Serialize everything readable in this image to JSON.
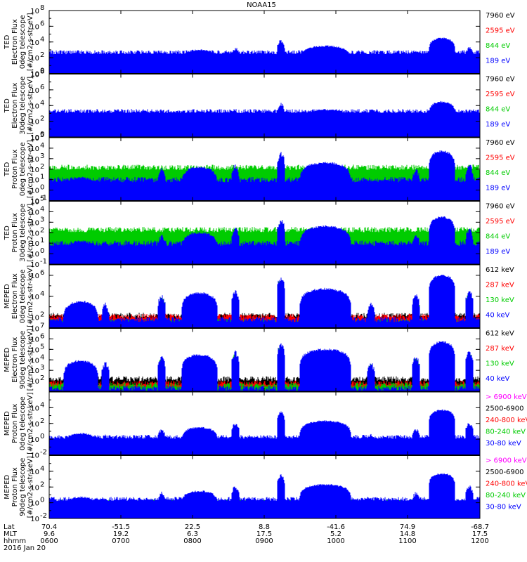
{
  "title": "NOAA15",
  "chart_data": [
    {
      "type": "line",
      "ylabel": [
        "TED",
        "Electron Flux",
        "0deg telescope",
        "[#/cm2-s-str-eV]"
      ],
      "yscale": "log",
      "ylim": [
        1,
        100000000
      ],
      "yticks": [
        {
          "label": "10",
          "sup": "0",
          "v": 1
        },
        {
          "label": "10",
          "sup": "2",
          "v": 100
        },
        {
          "label": "10",
          "sup": "4",
          "v": 10000
        },
        {
          "label": "10",
          "sup": "6",
          "v": 1000000
        },
        {
          "label": "10",
          "sup": "8",
          "v": 100000000
        }
      ],
      "legend": [
        {
          "label": "7960 eV",
          "color": "#000000"
        },
        {
          "label": "2595 eV",
          "color": "#ff0000"
        },
        {
          "label": "844 eV",
          "color": "#00cc00"
        },
        {
          "label": "189 eV",
          "color": "#0000ff"
        }
      ],
      "series": [
        {
          "color": "#000000",
          "peaks": [
            10,
            60,
            200,
            1000
          ],
          "floor": 2
        },
        {
          "color": "#ff0000",
          "peaks": [
            40,
            150,
            400,
            3000
          ],
          "floor": 3
        },
        {
          "color": "#00cc00",
          "peaks": [
            100,
            400,
            1000,
            10000
          ],
          "floor": 60
        },
        {
          "color": "#0000ff",
          "peaks": [
            200,
            1000,
            3000,
            30000
          ],
          "floor": 500
        }
      ]
    },
    {
      "type": "line",
      "ylabel": [
        "TED",
        "Electron Flux",
        "30deg telescope",
        "[#/cm2-s-str-eV]"
      ],
      "yscale": "log",
      "ylim": [
        1,
        100000000
      ],
      "yticks": [
        {
          "label": "10",
          "sup": "0",
          "v": 1
        },
        {
          "label": "10",
          "sup": "2",
          "v": 100
        },
        {
          "label": "10",
          "sup": "4",
          "v": 10000
        },
        {
          "label": "10",
          "sup": "6",
          "v": 1000000
        },
        {
          "label": "10",
          "sup": "8",
          "v": 100000000
        }
      ],
      "legend": [
        {
          "label": "7960 eV",
          "color": "#000000"
        },
        {
          "label": "2595 eV",
          "color": "#ff0000"
        },
        {
          "label": "844 eV",
          "color": "#00cc00"
        },
        {
          "label": "189 eV",
          "color": "#0000ff"
        }
      ],
      "series": [
        {
          "color": "#000000",
          "peaks": [
            10,
            60,
            200,
            1000
          ],
          "floor": 2
        },
        {
          "color": "#ff0000",
          "peaks": [
            40,
            150,
            400,
            3000
          ],
          "floor": 3
        },
        {
          "color": "#00cc00",
          "peaks": [
            100,
            400,
            1000,
            10000
          ],
          "floor": 15
        },
        {
          "color": "#0000ff",
          "peaks": [
            300,
            1500,
            3000,
            30000
          ],
          "floor": 2000
        }
      ]
    },
    {
      "type": "line",
      "ylabel": [
        "TED",
        "Proton Flux",
        "0deg telescope",
        "[#/cm2-s-str-eV]"
      ],
      "yscale": "log",
      "ylim": [
        0.1,
        100000
      ],
      "yticks": [
        {
          "label": "10",
          "sup": "-1",
          "v": 0.1
        },
        {
          "label": "10",
          "sup": "0",
          "v": 1
        },
        {
          "label": "10",
          "sup": "1",
          "v": 10
        },
        {
          "label": "10",
          "sup": "2",
          "v": 100
        },
        {
          "label": "10",
          "sup": "3",
          "v": 1000
        },
        {
          "label": "10",
          "sup": "4",
          "v": 10000
        },
        {
          "label": "10",
          "sup": "5",
          "v": 100000
        }
      ],
      "legend": [
        {
          "label": "7960 eV",
          "color": "#000000"
        },
        {
          "label": "2595 eV",
          "color": "#ff0000"
        },
        {
          "label": "844 eV",
          "color": "#00cc00"
        },
        {
          "label": "189 eV",
          "color": "#0000ff"
        }
      ],
      "series": [
        {
          "color": "#000000",
          "peaks": [
            5,
            40,
            100,
            500
          ],
          "floor": 0.5
        },
        {
          "color": "#ff0000",
          "peaks": [
            8,
            60,
            150,
            1000
          ],
          "floor": 1
        },
        {
          "color": "#00cc00",
          "peaks": [
            10,
            100,
            300,
            2000
          ],
          "floor": 150
        },
        {
          "color": "#0000ff",
          "peaks": [
            15,
            150,
            400,
            5000
          ],
          "floor": 10
        }
      ]
    },
    {
      "type": "line",
      "ylabel": [
        "TED",
        "Proton Flux",
        "30deg telescope",
        "[#/cm2-s-str-eV]"
      ],
      "yscale": "log",
      "ylim": [
        0.1,
        100000
      ],
      "yticks": [
        {
          "label": "10",
          "sup": "-1",
          "v": 0.1
        },
        {
          "label": "10",
          "sup": "0",
          "v": 1
        },
        {
          "label": "10",
          "sup": "1",
          "v": 10
        },
        {
          "label": "10",
          "sup": "2",
          "v": 100
        },
        {
          "label": "10",
          "sup": "3",
          "v": 1000
        },
        {
          "label": "10",
          "sup": "4",
          "v": 10000
        },
        {
          "label": "10",
          "sup": "5",
          "v": 100000
        }
      ],
      "legend": [
        {
          "label": "7960 eV",
          "color": "#000000"
        },
        {
          "label": "2595 eV",
          "color": "#ff0000"
        },
        {
          "label": "844 eV",
          "color": "#00cc00"
        },
        {
          "label": "189 eV",
          "color": "#0000ff"
        }
      ],
      "series": [
        {
          "color": "#000000",
          "peaks": [
            5,
            30,
            80,
            300
          ],
          "floor": 0.5
        },
        {
          "color": "#ff0000",
          "peaks": [
            8,
            50,
            120,
            800
          ],
          "floor": 1
        },
        {
          "color": "#00cc00",
          "peaks": [
            10,
            80,
            300,
            1500
          ],
          "floor": 200
        },
        {
          "color": "#0000ff",
          "peaks": [
            15,
            100,
            400,
            3000
          ],
          "floor": 10
        }
      ]
    },
    {
      "type": "line",
      "ylabel": [
        "MEPED",
        "Electron Flux",
        "0deg telescope",
        "[#/cm2-s-str-keV]"
      ],
      "yscale": "log",
      "ylim": [
        10,
        10000000
      ],
      "yticks": [
        {
          "label": "10",
          "sup": "2",
          "v": 100
        },
        {
          "label": "10",
          "sup": "4",
          "v": 10000
        },
        {
          "label": "10",
          "sup": "6",
          "v": 1000000
        }
      ],
      "legend": [
        {
          "label": "612 keV",
          "color": "#000000"
        },
        {
          "label": "287 keV",
          "color": "#ff0000"
        },
        {
          "label": "130 keV",
          "color": "#00cc00"
        },
        {
          "label": "40 keV",
          "color": "#0000ff"
        }
      ],
      "series": [
        {
          "color": "#000000",
          "peaks": [
            100,
            500,
            1000,
            10000
          ],
          "floor": 150
        },
        {
          "color": "#ff0000",
          "peaks": [
            1000,
            5000,
            20000,
            300000
          ],
          "floor": 120
        },
        {
          "color": "#00cc00",
          "peaks": [
            2000,
            10000,
            30000,
            600000
          ],
          "floor": 40
        },
        {
          "color": "#0000ff",
          "peaks": [
            3000,
            20000,
            50000,
            1000000
          ],
          "floor": 60
        }
      ]
    },
    {
      "type": "line",
      "ylabel": [
        "MEPED",
        "Electron Flux",
        "90deg telescope",
        "[#/cm2-s-str-keV]"
      ],
      "yscale": "log",
      "ylim": [
        10,
        10000000
      ],
      "yticks": [
        {
          "label": "10",
          "sup": "2",
          "v": 100
        },
        {
          "label": "10",
          "sup": "3",
          "v": 1000
        },
        {
          "label": "10",
          "sup": "4",
          "v": 10000
        },
        {
          "label": "10",
          "sup": "5",
          "v": 100000
        },
        {
          "label": "10",
          "sup": "6",
          "v": 1000000
        },
        {
          "label": "10",
          "sup": "7",
          "v": 10000000
        }
      ],
      "legend": [
        {
          "label": "612 keV",
          "color": "#000000"
        },
        {
          "label": "287 keV",
          "color": "#ff0000"
        },
        {
          "label": "130 keV",
          "color": "#00cc00"
        },
        {
          "label": "40 keV",
          "color": "#0000ff"
        }
      ],
      "series": [
        {
          "color": "#000000",
          "peaks": [
            100,
            300,
            800,
            3000
          ],
          "floor": 150
        },
        {
          "color": "#ff0000",
          "peaks": [
            2000,
            8000,
            20000,
            100000
          ],
          "floor": 60
        },
        {
          "color": "#00cc00",
          "peaks": [
            5000,
            20000,
            60000,
            300000
          ],
          "floor": 40
        },
        {
          "color": "#0000ff",
          "peaks": [
            8000,
            30000,
            100000,
            500000
          ],
          "floor": 20
        }
      ]
    },
    {
      "type": "line",
      "ylabel": [
        "MEPED",
        "Proton Flux",
        "0deg telescope",
        "[#/cm2-s-str-keV]"
      ],
      "yscale": "log",
      "ylim": [
        0.01,
        1000000
      ],
      "yticks": [
        {
          "label": "10",
          "sup": "-2",
          "v": 0.01
        },
        {
          "label": "10",
          "sup": "0",
          "v": 1
        },
        {
          "label": "10",
          "sup": "2",
          "v": 100
        },
        {
          "label": "10",
          "sup": "4",
          "v": 10000
        }
      ],
      "legend": [
        {
          "label": "> 6900 keV",
          "color": "#ff00ff"
        },
        {
          "label": "2500-6900",
          "color": "#000000"
        },
        {
          "label": "240-800 keV",
          "color": "#ff0000"
        },
        {
          "label": "80-240 keV",
          "color": "#00cc00"
        },
        {
          "label": "30-80 keV",
          "color": "#0000ff"
        }
      ],
      "series": [
        {
          "color": "#ff00ff",
          "peaks": [
            0.03,
            0.04,
            0.05,
            0.06
          ],
          "floor": 0
        },
        {
          "color": "#000000",
          "peaks": [
            0.1,
            0.2,
            0.3,
            0.5
          ],
          "floor": 0
        },
        {
          "color": "#ff0000",
          "peaks": [
            0.5,
            1,
            3,
            10
          ],
          "floor": 0.1
        },
        {
          "color": "#00cc00",
          "peaks": [
            1,
            5,
            20,
            100
          ],
          "floor": 0.8
        },
        {
          "color": "#0000ff",
          "peaks": [
            5,
            30,
            200,
            5000
          ],
          "floor": 2
        }
      ]
    },
    {
      "type": "line",
      "ylabel": [
        "MEPED",
        "Proton Flux",
        "90deg telescope",
        "[#/cm2-s-str-keV]"
      ],
      "yscale": "log",
      "ylim": [
        0.01,
        1000000
      ],
      "yticks": [
        {
          "label": "10",
          "sup": "-2",
          "v": 0.01
        },
        {
          "label": "10",
          "sup": "0",
          "v": 1
        },
        {
          "label": "10",
          "sup": "2",
          "v": 100
        },
        {
          "label": "10",
          "sup": "4",
          "v": 10000
        }
      ],
      "legend": [
        {
          "label": "> 6900 keV",
          "color": "#ff00ff"
        },
        {
          "label": "2500-6900",
          "color": "#000000"
        },
        {
          "label": "240-800 keV",
          "color": "#ff0000"
        },
        {
          "label": "80-240 keV",
          "color": "#00cc00"
        },
        {
          "label": "30-80 keV",
          "color": "#0000ff"
        }
      ],
      "series": [
        {
          "color": "#ff00ff",
          "peaks": [
            0.03,
            0.04,
            0.05,
            0.06
          ],
          "floor": 0
        },
        {
          "color": "#000000",
          "peaks": [
            0.1,
            0.2,
            0.3,
            0.5
          ],
          "floor": 0
        },
        {
          "color": "#ff0000",
          "peaks": [
            0.5,
            1,
            3,
            10
          ],
          "floor": 0.2
        },
        {
          "color": "#00cc00",
          "peaks": [
            1,
            5,
            20,
            100
          ],
          "floor": 1.5
        },
        {
          "color": "#0000ff",
          "peaks": [
            5,
            30,
            200,
            5000
          ],
          "floor": 3
        }
      ]
    }
  ],
  "xaxis": {
    "row_labels": [
      "Lat",
      "MLT",
      "hhmm",
      "2016 Jan 20"
    ],
    "ticks": [
      {
        "lat": "70.4",
        "mlt": "9.6",
        "hhmm": "0600"
      },
      {
        "lat": "-51.5",
        "mlt": "19.2",
        "hhmm": "0700"
      },
      {
        "lat": "22.5",
        "mlt": "6.3",
        "hhmm": "0800"
      },
      {
        "lat": "8.8",
        "mlt": "17.5",
        "hhmm": "0900"
      },
      {
        "lat": "-41.6",
        "mlt": "5.2",
        "hhmm": "1000"
      },
      {
        "lat": "74.9",
        "mlt": "14.8",
        "hhmm": "1100"
      },
      {
        "lat": "-68.7",
        "mlt": "17.5",
        "hhmm": "1200"
      }
    ]
  }
}
